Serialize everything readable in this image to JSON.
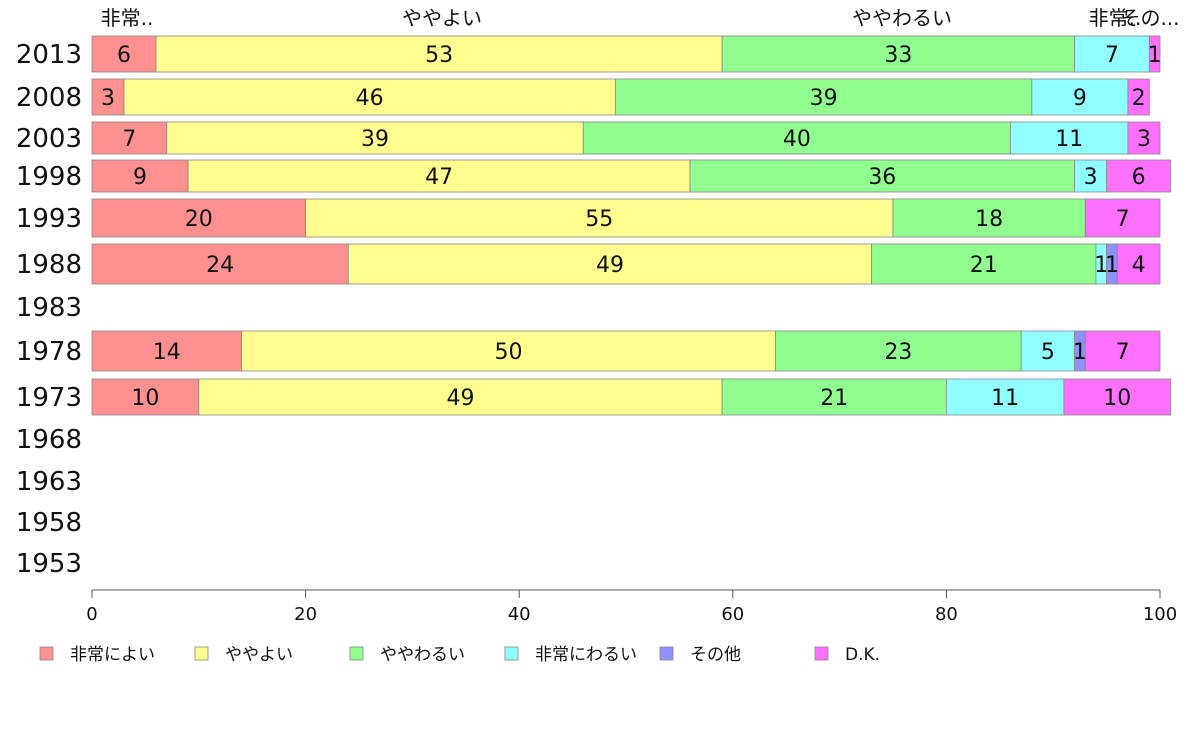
{
  "chart_data": {
    "type": "bar",
    "orientation": "horizontal",
    "stacked": true,
    "years": [
      "2013",
      "2008",
      "2003",
      "1998",
      "1993",
      "1988",
      "1983",
      "1978",
      "1973",
      "1968",
      "1963",
      "1958",
      "1953"
    ],
    "xlim": [
      0,
      100
    ],
    "xticks": [
      "0",
      "20",
      "40",
      "60",
      "80",
      "100"
    ],
    "series": [
      {
        "name": "非常によい",
        "color": "#ff9090",
        "values": [
          6,
          3,
          7,
          9,
          20,
          24,
          null,
          14,
          10,
          null,
          null,
          null,
          null
        ],
        "labels": [
          "6",
          "3",
          "7",
          "9",
          "20",
          "24",
          "",
          "14",
          "10",
          "",
          "",
          "",
          ""
        ]
      },
      {
        "name": "ややよい",
        "color": "#ffff90",
        "values": [
          53,
          46,
          39,
          47,
          55,
          49,
          null,
          50,
          49,
          null,
          null,
          null,
          null
        ],
        "labels": [
          "53",
          "46",
          "39",
          "47",
          "55",
          "49",
          "",
          "50",
          "49",
          "",
          "",
          "",
          ""
        ]
      },
      {
        "name": "ややわるい",
        "color": "#90ff90",
        "values": [
          33,
          39,
          40,
          36,
          18,
          21,
          null,
          23,
          21,
          null,
          null,
          null,
          null
        ],
        "labels": [
          "33",
          "39",
          "40",
          "36",
          "18",
          "21",
          "",
          "23",
          "21",
          "",
          "",
          "",
          ""
        ]
      },
      {
        "name": "非常にわるい",
        "color": "#90ffff",
        "values": [
          7,
          9,
          11,
          3,
          0,
          1,
          null,
          5,
          11,
          null,
          null,
          null,
          null
        ],
        "labels": [
          "7",
          "9",
          "11",
          "3",
          "",
          "1",
          "",
          "5",
          "11",
          "",
          "",
          "",
          ""
        ]
      },
      {
        "name": "その他",
        "color": "#9090ff",
        "values": [
          0,
          0,
          0,
          0,
          0,
          1,
          null,
          1,
          0,
          null,
          null,
          null,
          null
        ],
        "labels": [
          "",
          "",
          "",
          "",
          "",
          "1",
          "",
          "1",
          "",
          "",
          "",
          "",
          ""
        ]
      },
      {
        "name": "D.K.",
        "color": "#ff70ff",
        "values": [
          1,
          2,
          3,
          6,
          7,
          4,
          null,
          7,
          10,
          null,
          null,
          null,
          null
        ],
        "labels": [
          "1",
          "2",
          "3",
          "6",
          "7",
          "4",
          "",
          "7",
          "10",
          "",
          "",
          "",
          ""
        ]
      }
    ],
    "top_labels": [
      "非常..",
      "ややよい",
      "ややわるい",
      "非常..",
      "その..."
    ],
    "legend": [
      "非常によい",
      "ややよい",
      "ややわるい",
      "非常にわるい",
      "その他",
      "D.K."
    ],
    "legend_position": "bottom",
    "grid": false
  }
}
